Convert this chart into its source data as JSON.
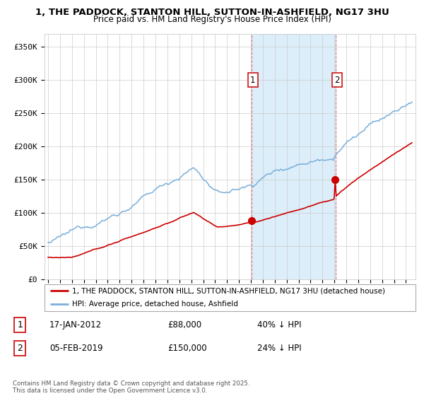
{
  "title1": "1, THE PADDOCK, STANTON HILL, SUTTON-IN-ASHFIELD, NG17 3HU",
  "title2": "Price paid vs. HM Land Registry's House Price Index (HPI)",
  "legend_red": "1, THE PADDOCK, STANTON HILL, SUTTON-IN-ASHFIELD, NG17 3HU (detached house)",
  "legend_blue": "HPI: Average price, detached house, Ashfield",
  "annotation1_date": "17-JAN-2012",
  "annotation1_price": "£88,000",
  "annotation1_hpi": "40% ↓ HPI",
  "annotation2_date": "05-FEB-2019",
  "annotation2_price": "£150,000",
  "annotation2_hpi": "24% ↓ HPI",
  "footer": "Contains HM Land Registry data © Crown copyright and database right 2025.\nThis data is licensed under the Open Government Licence v3.0.",
  "yticks": [
    0,
    50000,
    100000,
    150000,
    200000,
    250000,
    300000,
    350000
  ],
  "ytick_labels": [
    "£0",
    "£50K",
    "£100K",
    "£150K",
    "£200K",
    "£250K",
    "£300K",
    "£350K"
  ],
  "red_color": "#cc0000",
  "blue_color": "#7aafda",
  "shade_color": "#dceef9",
  "vline_color": "#dd4444",
  "grid_color": "#cccccc",
  "sale1_year": 2012.05,
  "sale2_year": 2019.1,
  "sale1_price": 88000,
  "sale2_price": 150000,
  "ylim_max": 370000,
  "xstart": 1995,
  "xend": 2025
}
